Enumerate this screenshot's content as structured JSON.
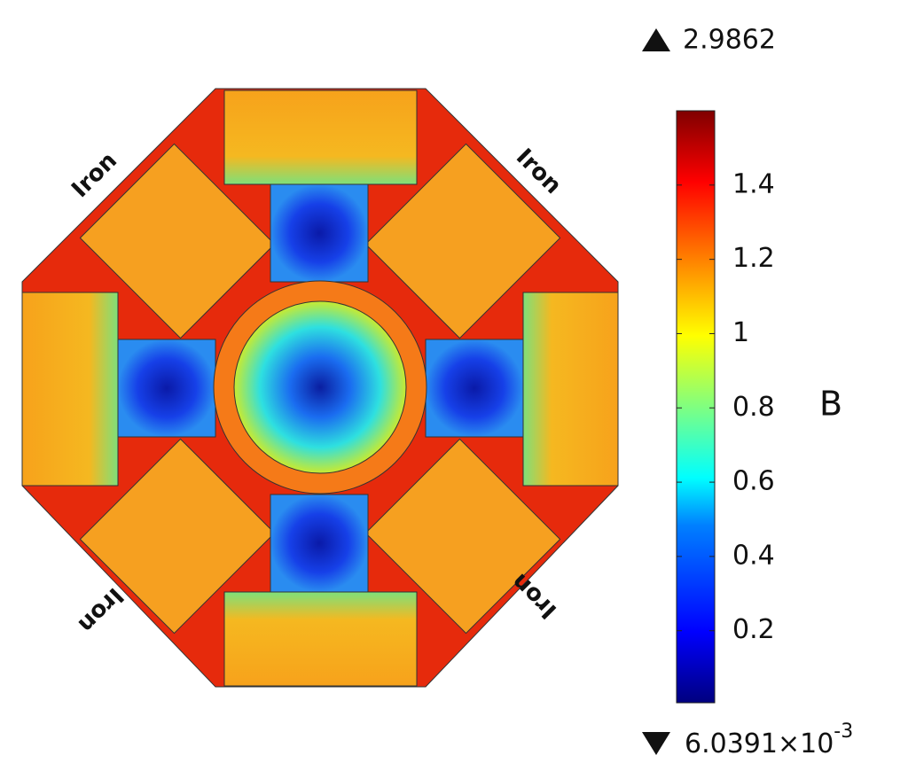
{
  "chart_data": {
    "type": "heatmap",
    "annotations": [
      "Iron",
      "Iron",
      "Iron",
      "Iron"
    ],
    "colorbar": {
      "label": "B",
      "clim": [
        0.0060391,
        1.6
      ],
      "cticks": [
        0.2,
        0.4,
        0.6,
        0.8,
        1,
        1.2,
        1.4
      ],
      "max": 2.9862,
      "min": {
        "value": 0.0060391,
        "mantissa": "6.0391×10",
        "exponent": "-3"
      }
    }
  }
}
